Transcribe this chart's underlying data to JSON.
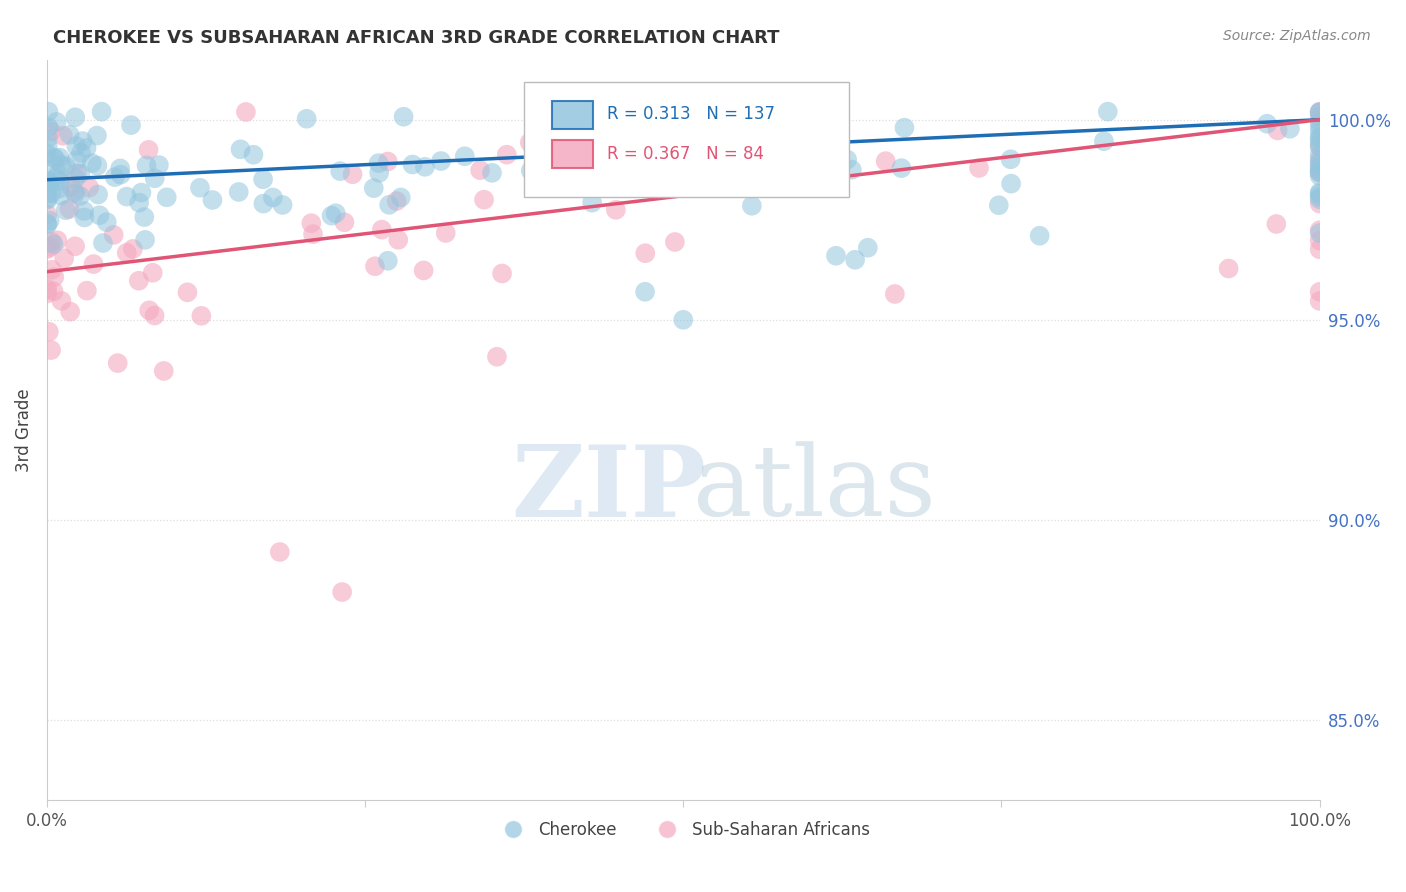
{
  "title": "CHEROKEE VS SUBSAHARAN AFRICAN 3RD GRADE CORRELATION CHART",
  "source": "Source: ZipAtlas.com",
  "ylabel": "3rd Grade",
  "xlim": [
    0.0,
    1.0
  ],
  "ylim": [
    0.83,
    1.015
  ],
  "background_color": "#ffffff",
  "watermark_zip": "ZIP",
  "watermark_atlas": "atlas",
  "legend_cherokee": "Cherokee",
  "legend_subsaharan": "Sub-Saharan Africans",
  "cherokee_color": "#92c5de",
  "subsaharan_color": "#f4a9c0",
  "cherokee_line_color": "#1f6eb5",
  "subsaharan_line_color": "#e05575",
  "cherokee_R": 0.313,
  "cherokee_N": 137,
  "subsaharan_R": 0.367,
  "subsaharan_N": 84,
  "grid_color": "#dddddd",
  "spine_color": "#cccccc",
  "tick_label_color": "#4472c4",
  "title_color": "#333333",
  "ylabel_color": "#444444"
}
